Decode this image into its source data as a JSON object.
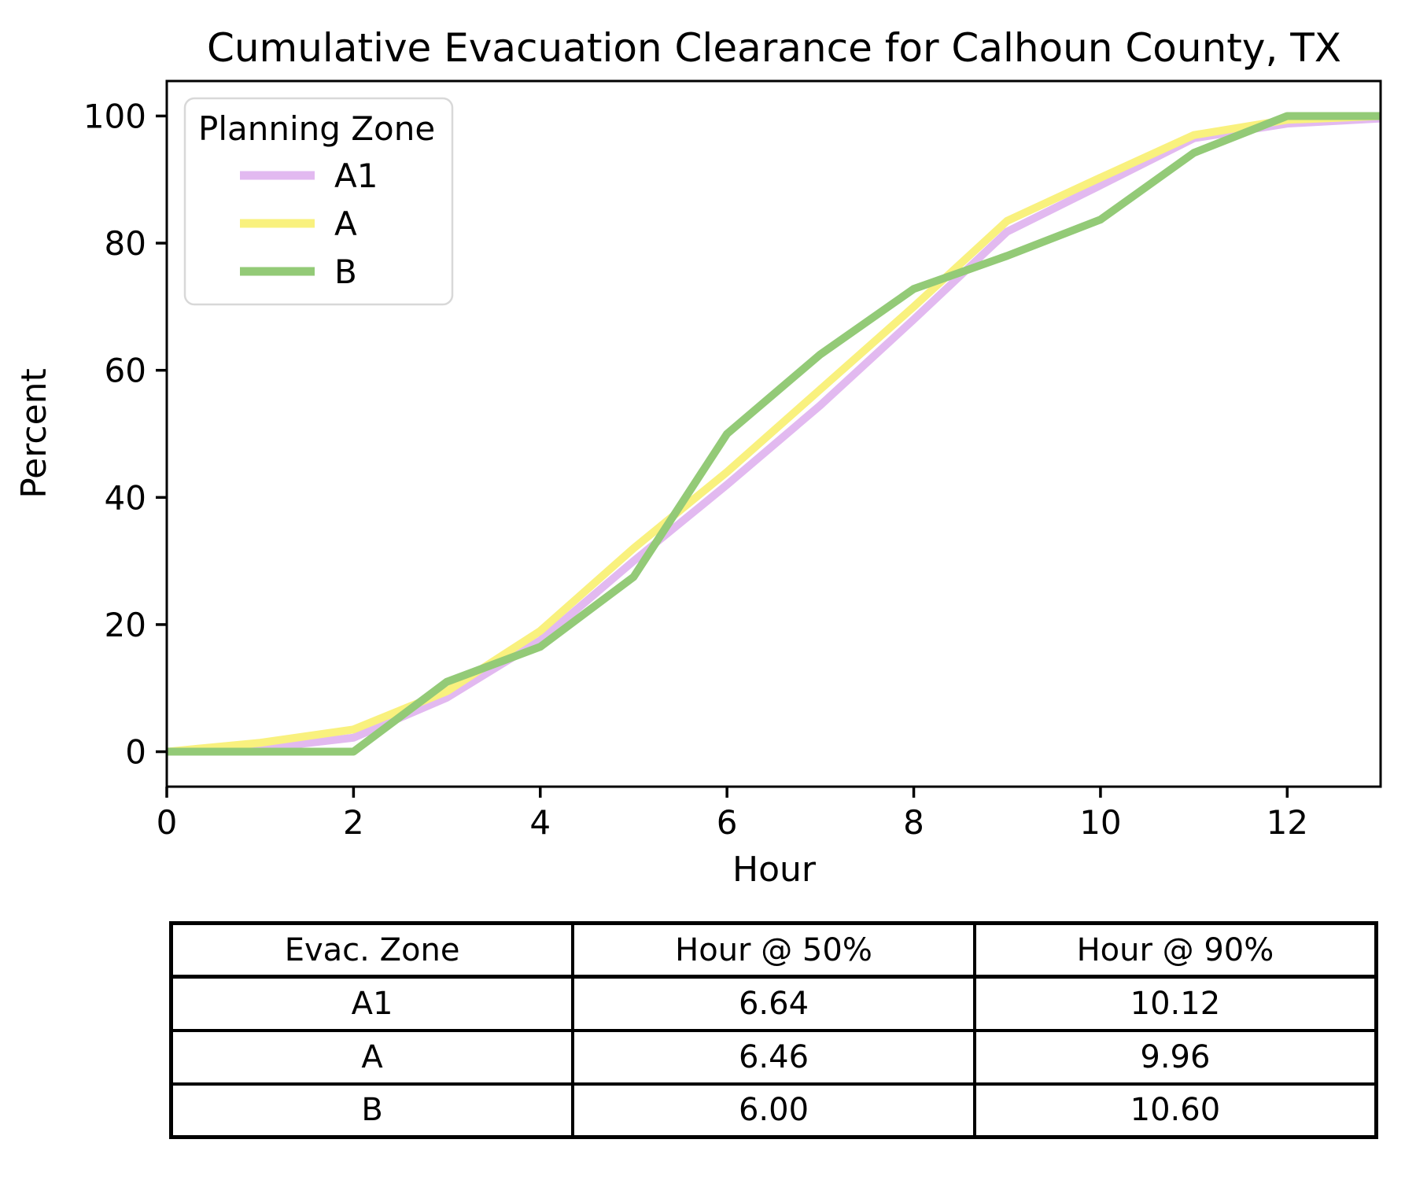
{
  "chart_data": {
    "type": "line",
    "title": "Cumulative Evacuation Clearance for Calhoun County, TX",
    "xlabel": "Hour",
    "ylabel": "Percent",
    "xlim": [
      0,
      13
    ],
    "ylim": [
      0,
      100
    ],
    "xticks": [
      0,
      2,
      4,
      6,
      8,
      10,
      12
    ],
    "yticks": [
      0,
      20,
      40,
      60,
      80,
      100
    ],
    "grid": false,
    "legend": {
      "title": "Planning Zone",
      "position": "upper-left"
    },
    "x": [
      0,
      1,
      2,
      3,
      4,
      5,
      6,
      7,
      8,
      9,
      10,
      11,
      12,
      13
    ],
    "series": [
      {
        "name": "A1",
        "color": "#e2b9f0",
        "values": [
          0,
          0.5,
          2.2,
          8.5,
          17.5,
          30,
          42,
          54.5,
          68,
          81.8,
          89.1,
          96.5,
          98.8,
          99.6
        ]
      },
      {
        "name": "A",
        "color": "#f9f17e",
        "values": [
          0,
          1.4,
          3.5,
          9.5,
          19,
          32,
          44,
          57,
          70,
          83.5,
          90.3,
          97,
          99.4,
          100
        ]
      },
      {
        "name": "B",
        "color": "#93ca77",
        "values": [
          0,
          0,
          0,
          11,
          16.5,
          27.5,
          50,
          62.5,
          72.8,
          78,
          83.7,
          94.2,
          100,
          100
        ]
      }
    ]
  },
  "summary_table": {
    "columns": [
      "Evac. Zone",
      "Hour @ 50%",
      "Hour @ 90%"
    ],
    "rows": [
      {
        "zone": "A1",
        "hour_at_50": "6.64",
        "hour_at_90": "10.12"
      },
      {
        "zone": "A",
        "hour_at_50": "6.46",
        "hour_at_90": "9.96"
      },
      {
        "zone": "B",
        "hour_at_50": "6.00",
        "hour_at_90": "10.60"
      }
    ]
  },
  "colors": {
    "axis": "#000000",
    "legend_border": "#d8d8d8",
    "zone_a1": "#e2b9f0",
    "zone_a": "#f9f17e",
    "zone_b": "#93ca77"
  }
}
